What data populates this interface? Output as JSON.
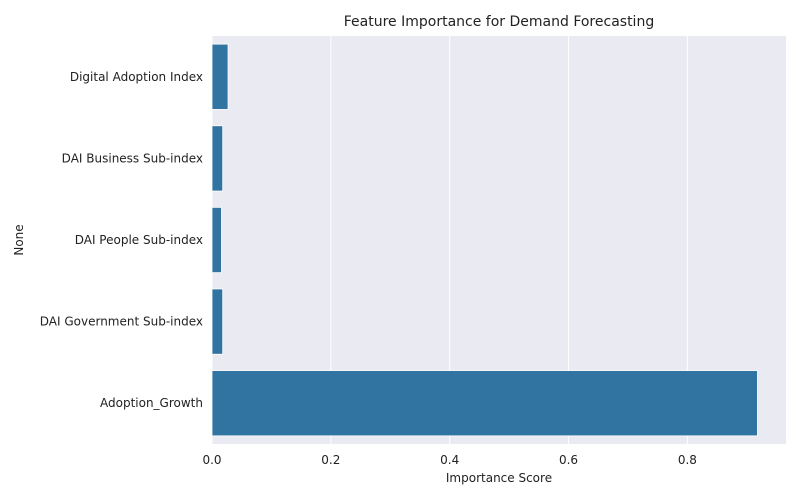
{
  "chart_data": {
    "type": "bar",
    "orientation": "horizontal",
    "title": "Feature Importance for Demand Forecasting",
    "xlabel": "Importance Score",
    "ylabel": "None",
    "categories": [
      "Digital Adoption Index",
      "DAI Business Sub-index",
      "DAI People Sub-index",
      "DAI Government Sub-index",
      "Adoption_Growth"
    ],
    "values": [
      0.027,
      0.018,
      0.016,
      0.018,
      0.918
    ],
    "xlim": [
      0,
      0.966
    ],
    "xticks": [
      "0.0",
      "0.2",
      "0.4",
      "0.6",
      "0.8"
    ],
    "grid": true,
    "legend": "none",
    "colors": {
      "bar": "#3274a1",
      "plot_background": "#eaeaf2",
      "grid": "#ffffff",
      "text": "#222222"
    }
  }
}
